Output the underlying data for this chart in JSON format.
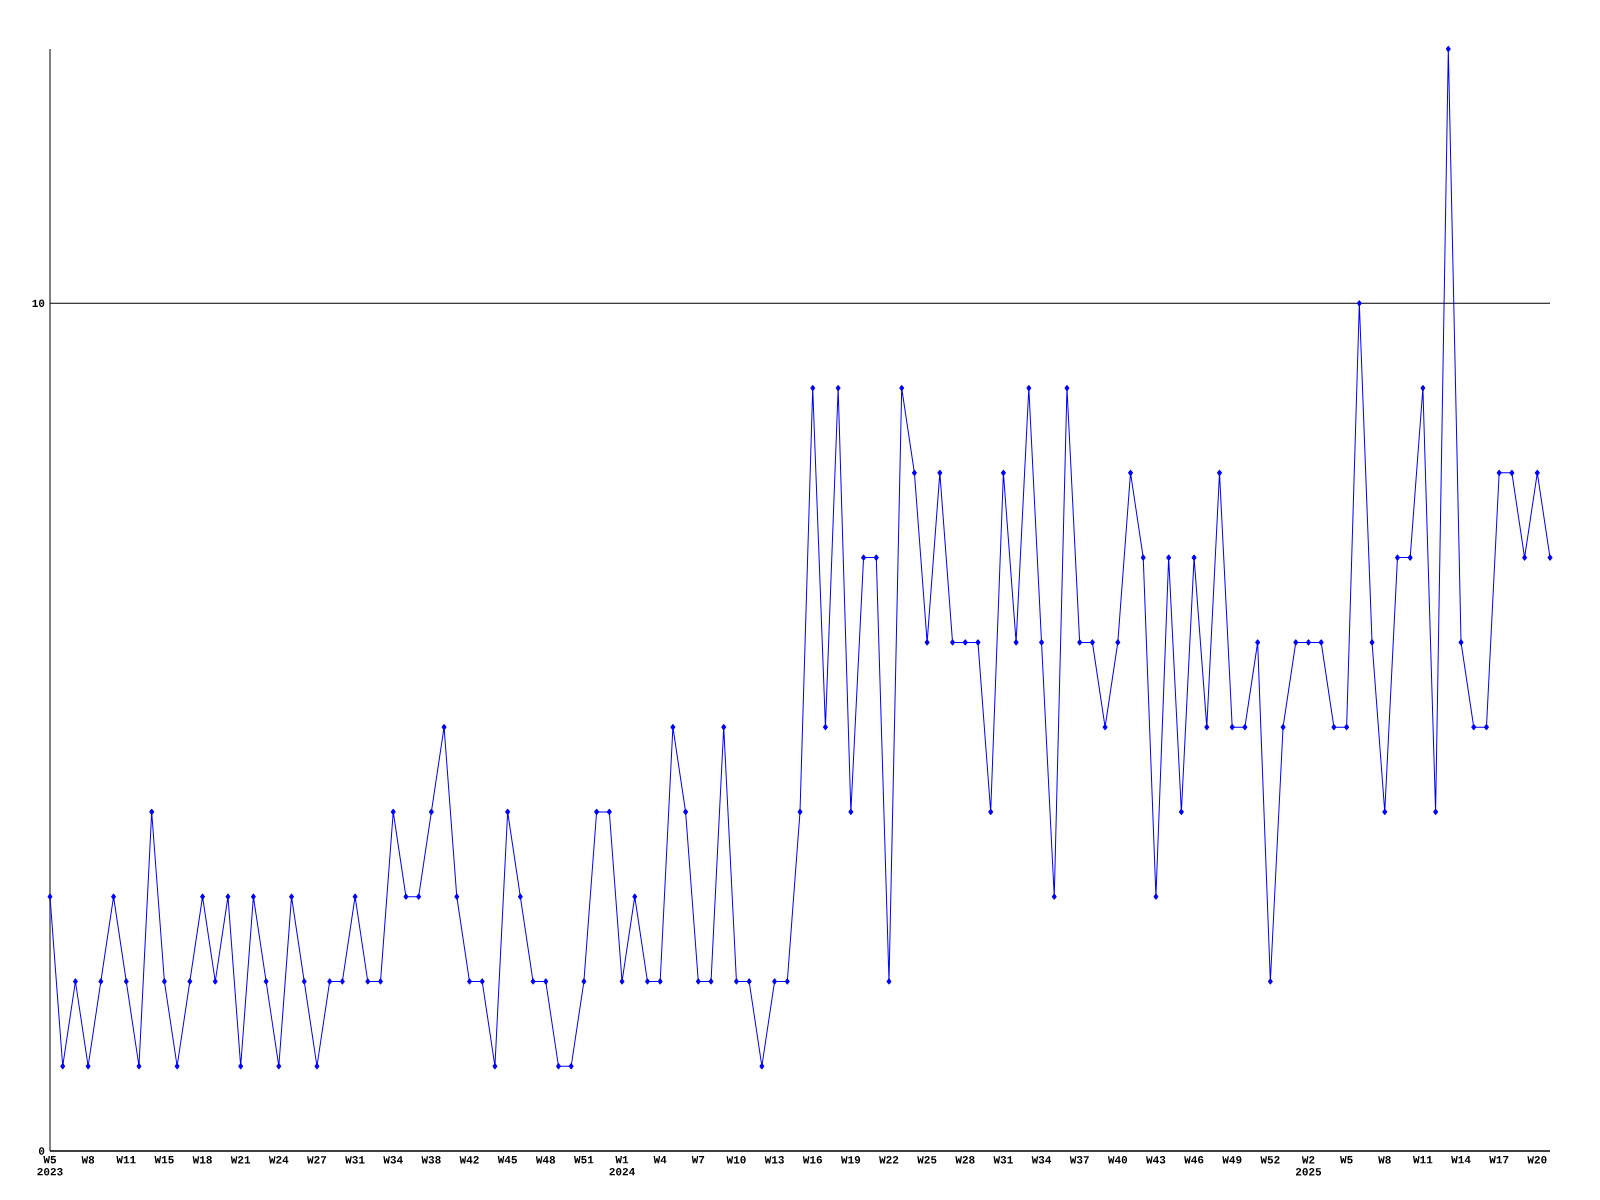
{
  "chart_data": {
    "type": "line",
    "categories": [
      "W5 2023",
      null,
      null,
      "W8",
      null,
      null,
      "W11",
      null,
      null,
      "W15",
      null,
      null,
      "W18",
      null,
      null,
      "W21",
      null,
      null,
      "W24",
      null,
      null,
      "W27",
      null,
      null,
      "W31",
      null,
      null,
      "W34",
      null,
      null,
      "W38",
      null,
      null,
      "W42",
      null,
      null,
      "W45",
      null,
      null,
      "W48",
      null,
      null,
      "W51",
      null,
      null,
      "W1 2024",
      null,
      null,
      "W4",
      null,
      null,
      "W7",
      null,
      null,
      "W10",
      null,
      null,
      "W13",
      null,
      null,
      "W16",
      null,
      null,
      "W19",
      null,
      null,
      "W22",
      null,
      null,
      "W25",
      null,
      null,
      "W28",
      null,
      null,
      "W31",
      null,
      null,
      "W34",
      null,
      null,
      "W37",
      null,
      null,
      "W40",
      null,
      null,
      "W43",
      null,
      null,
      "W46",
      null,
      null,
      "W49",
      null,
      null,
      "W52",
      null,
      null,
      "W2 2025",
      null,
      null,
      "W5",
      null,
      null,
      "W8",
      null,
      null,
      "W11",
      null,
      null,
      "W14",
      null,
      null,
      "W17",
      null,
      null,
      "W20",
      null
    ],
    "values": [
      3,
      1,
      2,
      1,
      2,
      3,
      2,
      1,
      4,
      2,
      1,
      2,
      3,
      2,
      3,
      1,
      3,
      2,
      1,
      3,
      2,
      1,
      2,
      2,
      3,
      2,
      2,
      4,
      3,
      3,
      4,
      5,
      3,
      2,
      2,
      1,
      4,
      3,
      2,
      2,
      1,
      1,
      2,
      4,
      4,
      2,
      3,
      2,
      2,
      5,
      4,
      2,
      2,
      5,
      2,
      2,
      1,
      2,
      2,
      4,
      9,
      5,
      9,
      4,
      7,
      7,
      2,
      9,
      8,
      6,
      8,
      6,
      6,
      6,
      4,
      8,
      6,
      9,
      6,
      3,
      9,
      6,
      6,
      5,
      6,
      8,
      7,
      3,
      7,
      4,
      7,
      5,
      8,
      5,
      5,
      6,
      2,
      5,
      6,
      6,
      6,
      5,
      5,
      10,
      6,
      4,
      7,
      7,
      9,
      4,
      13,
      6,
      5,
      5,
      8,
      8,
      7,
      8,
      7
    ],
    "color": "#0000ff",
    "marker": "diamond",
    "line_style": "solid",
    "ylim": [
      0,
      13
    ],
    "yticks": [
      0,
      10
    ],
    "grid": "y"
  }
}
